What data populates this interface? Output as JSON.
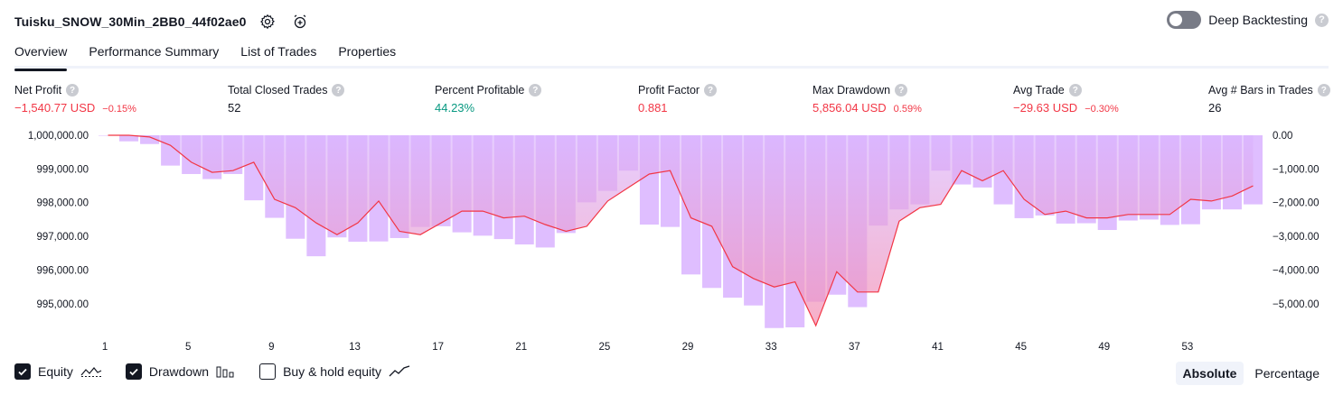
{
  "header": {
    "title": "Tuisku_SNOW_30Min_2BB0_44f02ae0",
    "deep_backtesting_label": "Deep Backtesting",
    "help_glyph": "?"
  },
  "tabs": [
    {
      "label": "Overview",
      "active": true
    },
    {
      "label": "Performance Summary",
      "active": false
    },
    {
      "label": "List of Trades",
      "active": false
    },
    {
      "label": "Properties",
      "active": false
    }
  ],
  "metrics": {
    "net_profit": {
      "label": "Net Profit",
      "value": "−1,540.77 USD",
      "sub": "−0.15%"
    },
    "total_closed_trades": {
      "label": "Total Closed Trades",
      "value": "52"
    },
    "percent_profitable": {
      "label": "Percent Profitable",
      "value": "44.23%"
    },
    "profit_factor": {
      "label": "Profit Factor",
      "value": "0.881"
    },
    "max_drawdown": {
      "label": "Max Drawdown",
      "value": "5,856.04 USD",
      "sub": "0.59%"
    },
    "avg_trade": {
      "label": "Avg Trade",
      "value": "−29.63 USD",
      "sub": "−0.30%"
    },
    "avg_bars": {
      "label": "Avg # Bars in Trades",
      "value": "26"
    }
  },
  "chart_data": {
    "type": "line",
    "x_ticks": [
      "1",
      "5",
      "9",
      "13",
      "17",
      "21",
      "25",
      "29",
      "33",
      "37",
      "41",
      "45",
      "49",
      "53"
    ],
    "left_axis_ticks": [
      "1,000,000.00",
      "999,000.00",
      "998,000.00",
      "997,000.00",
      "996,000.00",
      "995,000.00"
    ],
    "right_axis_ticks": [
      "0.00",
      "−1,000.00",
      "−2,000.00",
      "−3,000.00",
      "−4,000.00",
      "−5,000.00"
    ],
    "left_ylim": [
      994300,
      1000000
    ],
    "right_ylim": [
      -5700,
      0
    ],
    "series": [
      {
        "name": "Equity",
        "color": "#f23645",
        "values": [
          1000000,
          1000000,
          999950,
          999700,
          999200,
          998900,
          998950,
          999200,
          998100,
          997850,
          997400,
          997050,
          997400,
          998050,
          997150,
          997050,
          997400,
          997750,
          997750,
          997550,
          997600,
          997350,
          997150,
          997300,
          998050,
          998450,
          998850,
          998950,
          997550,
          997300,
          996100,
          995750,
          995500,
          995650,
          994350,
          995950,
          995350,
          995350,
          997450,
          997850,
          997950,
          998950,
          998650,
          998950,
          998100,
          997650,
          997750,
          997550,
          997550,
          997650,
          997650,
          997650,
          998100,
          998050,
          998200,
          998500
        ]
      },
      {
        "name": "Drawdown",
        "color": "#d9b3ff",
        "values": [
          0,
          -180,
          -260,
          -900,
          -1150,
          -1300,
          -1150,
          -1930,
          -2450,
          -3070,
          -3590,
          -3030,
          -3160,
          -3150,
          -3050,
          -2720,
          -2700,
          -2880,
          -2980,
          -3080,
          -3240,
          -3330,
          -2900,
          -1990,
          -1650,
          -1050,
          -2650,
          -2720,
          -4130,
          -4530,
          -4820,
          -5050,
          -5720,
          -5700,
          -4940,
          -4730,
          -5100,
          -2680,
          -2200,
          -2050,
          -1050,
          -1460,
          -1550,
          -2050,
          -2460,
          -2380,
          -2620,
          -2610,
          -2810,
          -2530,
          -2500,
          -2660,
          -2640,
          -2200,
          -2200,
          -2050
        ]
      }
    ],
    "legend": [
      {
        "label": "Equity",
        "checked": true
      },
      {
        "label": "Drawdown",
        "checked": true
      },
      {
        "label": "Buy & hold equity",
        "checked": false
      }
    ]
  },
  "view_switch": {
    "absolute": "Absolute",
    "percentage": "Percentage",
    "active": "absolute"
  },
  "icons": [
    "gear-icon",
    "alert-add-icon",
    "help-icon",
    "equity-line-icon",
    "drawdown-bars-icon",
    "buy-hold-line-icon",
    "checkmark-icon"
  ]
}
